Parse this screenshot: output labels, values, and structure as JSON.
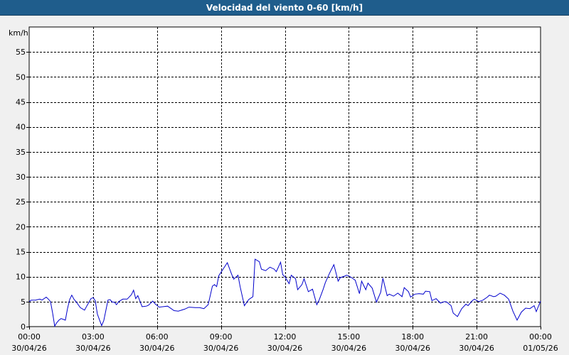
{
  "window": {
    "title": "Velocidad del viento 0-60 [km/h]"
  },
  "chart_data": {
    "type": "line",
    "title": "Velocidad del viento 0-60 [km/h]",
    "ylabel": "km/h",
    "xlabel": "",
    "ylim": [
      0,
      60
    ],
    "yticks": [
      0,
      5,
      10,
      15,
      20,
      25,
      30,
      35,
      40,
      45,
      50,
      55
    ],
    "xlim_hours": [
      0,
      24
    ],
    "xticks": [
      {
        "hour": 0,
        "time": "00:00",
        "date": "30/04/26"
      },
      {
        "hour": 3,
        "time": "03:00",
        "date": "30/04/26"
      },
      {
        "hour": 6,
        "time": "06:00",
        "date": "30/04/26"
      },
      {
        "hour": 9,
        "time": "09:00",
        "date": "30/04/26"
      },
      {
        "hour": 12,
        "time": "12:00",
        "date": "30/04/26"
      },
      {
        "hour": 15,
        "time": "15:00",
        "date": "30/04/26"
      },
      {
        "hour": 18,
        "time": "18:00",
        "date": "30/04/26"
      },
      {
        "hour": 21,
        "time": "21:00",
        "date": "30/04/26"
      },
      {
        "hour": 24,
        "time": "00:00",
        "date": "01/05/26"
      }
    ],
    "grid": true,
    "series": [
      {
        "color": "#0000cc",
        "x": [
          0.0,
          0.1,
          0.3,
          0.5,
          0.6,
          0.8,
          0.9,
          1.0,
          1.1,
          1.2,
          1.3,
          1.4,
          1.5,
          1.7,
          1.8,
          1.9,
          2.0,
          2.1,
          2.2,
          2.4,
          2.6,
          2.7,
          2.9,
          3.0,
          3.1,
          3.2,
          3.4,
          3.5,
          3.6,
          3.7,
          3.8,
          3.9,
          4.0,
          4.1,
          4.2,
          4.4,
          4.6,
          4.8,
          4.9,
          5.0,
          5.1,
          5.3,
          5.5,
          5.6,
          5.8,
          5.9,
          6.1,
          6.3,
          6.5,
          6.8,
          7.0,
          7.3,
          7.5,
          7.8,
          8.0,
          8.2,
          8.4,
          8.6,
          8.7,
          8.8,
          8.9,
          9.1,
          9.3,
          9.5,
          9.6,
          9.8,
          9.9,
          10.1,
          10.3,
          10.5,
          10.6,
          10.8,
          10.9,
          11.1,
          11.3,
          11.5,
          11.6,
          11.8,
          11.9,
          12.0,
          12.2,
          12.3,
          12.5,
          12.6,
          12.8,
          12.9,
          13.1,
          13.3,
          13.5,
          13.6,
          13.8,
          13.9,
          14.1,
          14.3,
          14.5,
          14.6,
          14.8,
          14.9,
          15.1,
          15.3,
          15.5,
          15.6,
          15.8,
          15.9,
          16.1,
          16.3,
          16.5,
          16.6,
          16.8,
          16.9,
          17.1,
          17.3,
          17.5,
          17.6,
          17.8,
          17.9,
          18.1,
          18.3,
          18.5,
          18.6,
          18.8,
          18.9,
          19.1,
          19.3,
          19.5,
          19.6,
          19.8,
          19.9,
          20.1,
          20.3,
          20.5,
          20.6,
          20.8,
          20.9,
          21.1,
          21.3,
          21.5,
          21.6,
          21.8,
          21.9,
          22.1,
          22.3,
          22.5,
          22.7,
          22.9,
          23.1,
          23.3,
          23.5,
          23.7,
          23.8,
          24.0
        ],
        "values": [
          5.0,
          5.3,
          5.3,
          5.5,
          5.3,
          5.9,
          5.5,
          5.0,
          2.7,
          0.1,
          0.8,
          1.3,
          1.6,
          1.3,
          3.6,
          5.4,
          6.3,
          5.5,
          5.0,
          3.8,
          3.3,
          4.1,
          5.6,
          5.8,
          5.2,
          2.5,
          0.2,
          1.2,
          3.2,
          5.3,
          5.4,
          4.9,
          4.9,
          4.4,
          5.0,
          5.5,
          5.5,
          6.4,
          7.3,
          5.6,
          6.2,
          4.0,
          4.1,
          4.3,
          5.1,
          4.6,
          3.9,
          4.0,
          4.1,
          3.2,
          3.1,
          3.5,
          3.9,
          3.8,
          3.8,
          3.6,
          4.4,
          8.1,
          8.4,
          8.0,
          10.2,
          11.5,
          12.8,
          10.5,
          9.5,
          10.3,
          8.0,
          4.2,
          5.4,
          6.0,
          13.5,
          13.0,
          11.5,
          11.2,
          11.9,
          11.5,
          11.0,
          12.9,
          10.4,
          10.0,
          8.6,
          10.3,
          9.6,
          7.4,
          8.4,
          9.6,
          7.0,
          7.5,
          4.4,
          5.2,
          7.5,
          8.8,
          10.7,
          12.4,
          9.1,
          9.8,
          10.1,
          10.3,
          9.9,
          9.3,
          6.6,
          9.1,
          7.4,
          8.7,
          7.7,
          4.9,
          6.9,
          9.7,
          6.2,
          6.5,
          6.1,
          6.7,
          6.0,
          7.8,
          7.0,
          5.9,
          6.5,
          6.6,
          6.5,
          7.1,
          7.0,
          5.2,
          5.6,
          4.7,
          5.0,
          4.9,
          4.2,
          2.7,
          2.0,
          3.6,
          4.5,
          4.2,
          5.2,
          5.5,
          5.0,
          5.3,
          5.9,
          6.3,
          6.0,
          6.1,
          6.7,
          6.3,
          5.5,
          3.1,
          1.3,
          2.9,
          3.7,
          3.6,
          4.2,
          3.0,
          5.1
        ]
      }
    ]
  }
}
